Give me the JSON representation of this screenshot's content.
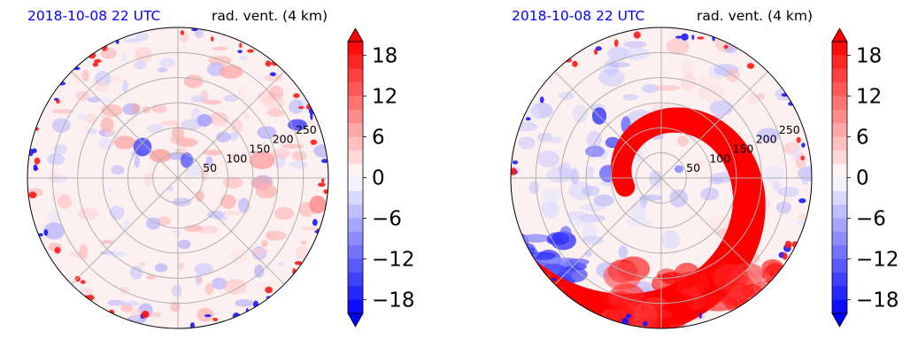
{
  "chart_data": [
    {
      "type": "heatmap",
      "projection": "polar",
      "title_left": "2018-10-08 22 UTC",
      "title_right": "rad. vent. (4 km)",
      "radial_ticks": [
        "50",
        "100",
        "150",
        "200",
        "250"
      ],
      "radial_values": [
        50,
        100,
        150,
        200,
        250
      ],
      "rlim": [
        0,
        300
      ],
      "angular_grid_deg": [
        0,
        45,
        90,
        135,
        180,
        225,
        270,
        315
      ],
      "grid": true,
      "colorbar": {
        "ticks": [
          "18",
          "12",
          "6",
          "0",
          "−6",
          "−12",
          "−18"
        ],
        "tick_values": [
          18,
          12,
          6,
          0,
          -6,
          -12,
          -18
        ],
        "vmin": -20,
        "vmax": 20,
        "step": 2,
        "extend": "both",
        "cmap": "bwr",
        "color_low": "#0000ff",
        "color_mid": "#ffffff",
        "color_high": "#ff0000"
      },
      "pattern": "scattered"
    },
    {
      "type": "heatmap",
      "projection": "polar",
      "title_left": "2018-10-08 22 UTC",
      "title_right": "rad. vent. (4 km)",
      "radial_ticks": [
        "50",
        "100",
        "150",
        "200",
        "250"
      ],
      "radial_values": [
        50,
        100,
        150,
        200,
        250
      ],
      "rlim": [
        0,
        300
      ],
      "angular_grid_deg": [
        0,
        45,
        90,
        135,
        180,
        225,
        270,
        315
      ],
      "grid": true,
      "colorbar": {
        "ticks": [
          "18",
          "12",
          "6",
          "0",
          "−6",
          "−12",
          "−18"
        ],
        "tick_values": [
          18,
          12,
          6,
          0,
          -6,
          -12,
          -18
        ],
        "vmin": -20,
        "vmax": 20,
        "step": 2,
        "extend": "both",
        "cmap": "bwr",
        "color_low": "#0000ff",
        "color_mid": "#ffffff",
        "color_high": "#ff0000"
      },
      "pattern": "spiral"
    }
  ],
  "colors": {
    "title_left": "#0000ff",
    "title_right": "#000000",
    "grid": "#b0b0b0"
  }
}
